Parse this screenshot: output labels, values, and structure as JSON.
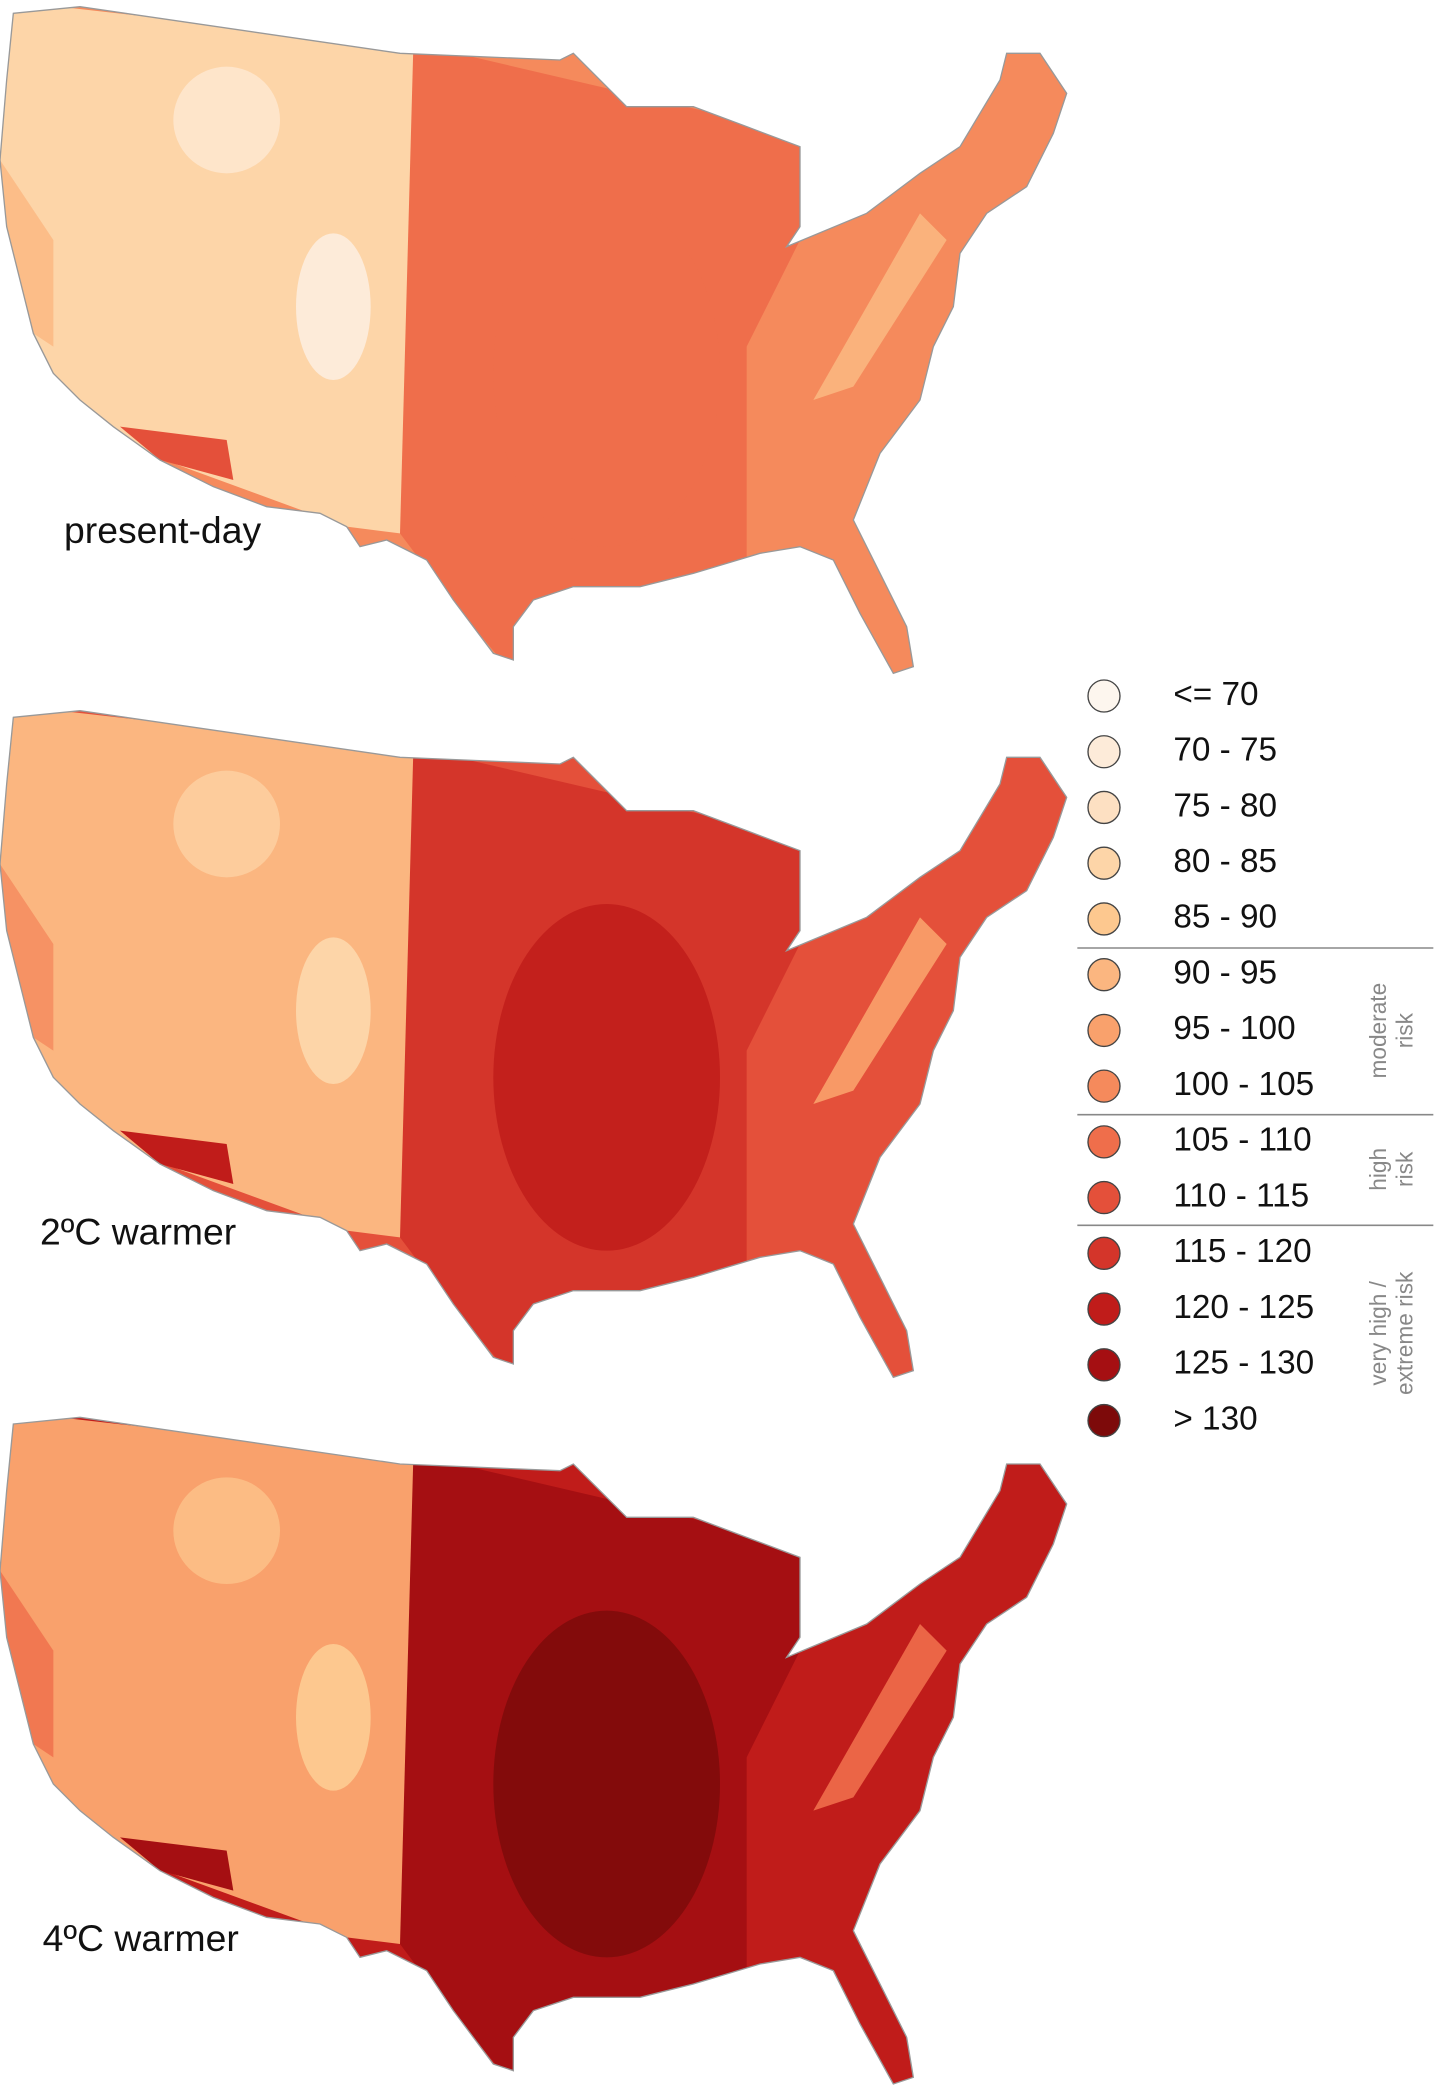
{
  "maps": [
    {
      "label": "present-day"
    },
    {
      "label": "2ºC warmer"
    },
    {
      "label": "4ºC warmer"
    }
  ],
  "legend": {
    "items": [
      {
        "label": "<= 70",
        "color": "#fdf6ee"
      },
      {
        "label": "70 - 75",
        "color": "#fdebd9"
      },
      {
        "label": "75 - 80",
        "color": "#fde0c2"
      },
      {
        "label": "80 - 85",
        "color": "#fdd5a8"
      },
      {
        "label": "85 - 90",
        "color": "#fdc88f"
      },
      {
        "label": "90 - 95",
        "color": "#fbb680"
      },
      {
        "label": "95 - 100",
        "color": "#f9a16c"
      },
      {
        "label": "100 - 105",
        "color": "#f58a5c"
      },
      {
        "label": "105 - 110",
        "color": "#ef6e4b"
      },
      {
        "label": "110 - 115",
        "color": "#e4503a"
      },
      {
        "label": "115 - 120",
        "color": "#d4352a"
      },
      {
        "label": "120 - 125",
        "color": "#c01c1a"
      },
      {
        "label": "125 - 130",
        "color": "#a50f12"
      },
      {
        "label": "> 130",
        "color": "#7d0a0a"
      }
    ],
    "groups": [
      {
        "lines": [
          "moderate",
          "risk"
        ]
      },
      {
        "lines": [
          "high",
          "risk"
        ]
      },
      {
        "lines": [
          "very high /",
          "extreme risk"
        ]
      }
    ]
  }
}
